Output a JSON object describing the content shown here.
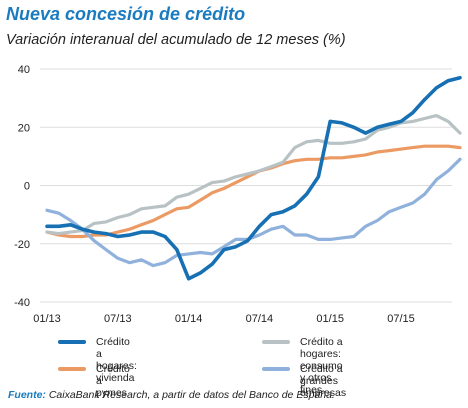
{
  "title": "Nueva concesión de crédito",
  "subtitle": "Variación interanual del acumulado de 12 meses (%)",
  "source_label": "Fuente:",
  "source_text": " CaixaBank Research, a partir de datos del Banco de España.",
  "colors": {
    "vivienda": "#1670b3",
    "consumo": "#b8c2c4",
    "pymes": "#ec9a63",
    "grandes": "#8fb1db",
    "axis_text": "#222222",
    "grid": "#dddddd"
  },
  "chart_data": {
    "type": "line",
    "x": [
      "01/13",
      "02/13",
      "03/13",
      "04/13",
      "05/13",
      "06/13",
      "07/13",
      "08/13",
      "09/13",
      "10/13",
      "11/13",
      "12/13",
      "01/14",
      "02/14",
      "03/14",
      "04/14",
      "05/14",
      "06/14",
      "07/14",
      "08/14",
      "09/14",
      "10/14",
      "11/14",
      "12/14",
      "01/15",
      "02/15",
      "03/15",
      "04/15",
      "05/15",
      "06/15",
      "07/15",
      "08/15",
      "09/15",
      "10/15",
      "11/15",
      "12/15"
    ],
    "x_ticks": [
      "01/13",
      "07/13",
      "01/14",
      "07/14",
      "01/15",
      "07/15"
    ],
    "y_ticks": [
      40,
      20,
      0,
      -20,
      -40
    ],
    "ylim": [
      -40,
      40
    ],
    "grid": "horizontal",
    "xlabel": "",
    "ylabel": "",
    "series": [
      {
        "key": "vivienda",
        "name": "Crédito a hogares:\nvivienda",
        "values": [
          -14,
          -14,
          -13.5,
          -15,
          -16,
          -16.5,
          -17.5,
          -17,
          -16,
          -16,
          -17.5,
          -22,
          -32,
          -30,
          -27,
          -22,
          -21,
          -19,
          -14,
          -10,
          -9,
          -7,
          -3,
          3,
          22,
          21.5,
          20,
          18,
          20,
          21,
          22,
          25,
          29.5,
          33.5,
          36,
          37
        ]
      },
      {
        "key": "consumo",
        "name": "Crédito a hogares:\nconsumo y otros fines",
        "values": [
          -16,
          -16.5,
          -16,
          -15.5,
          -13,
          -12.5,
          -11,
          -10,
          -8,
          -7.5,
          -7,
          -4,
          -3,
          -1,
          1,
          1.5,
          3,
          4,
          5,
          6.5,
          8,
          13,
          15,
          15.5,
          14.5,
          14.5,
          15,
          16,
          19,
          20,
          21.5,
          22,
          23,
          24,
          22,
          18
        ]
      },
      {
        "key": "pymes",
        "name": "Crédito a pymes",
        "values": [
          -16,
          -17,
          -17.5,
          -17.5,
          -17,
          -17,
          -16,
          -15,
          -13.5,
          -12,
          -10,
          -8,
          -7.5,
          -5,
          -2.5,
          -1,
          1,
          3,
          5,
          6,
          7.5,
          8.5,
          9,
          9,
          9.5,
          9.5,
          10,
          10.5,
          11.5,
          12,
          12.5,
          13,
          13.5,
          13.5,
          13.5,
          13
        ]
      },
      {
        "key": "grandes",
        "name": "Crédito a grandes empresas",
        "values": [
          -8.5,
          -9.5,
          -12,
          -15,
          -19,
          -22,
          -25,
          -26.5,
          -25.5,
          -27.5,
          -26.5,
          -24,
          -23.5,
          -23,
          -23.5,
          -21,
          -18.5,
          -18.5,
          -17,
          -15,
          -14,
          -17,
          -17,
          -18.5,
          -18.5,
          -18,
          -17.5,
          -14,
          -12,
          -9,
          -7.5,
          -6,
          -3,
          2,
          5,
          9
        ]
      }
    ],
    "legend": {
      "placement": "bottom",
      "order": [
        "vivienda",
        "consumo",
        "pymes",
        "grandes"
      ]
    }
  }
}
